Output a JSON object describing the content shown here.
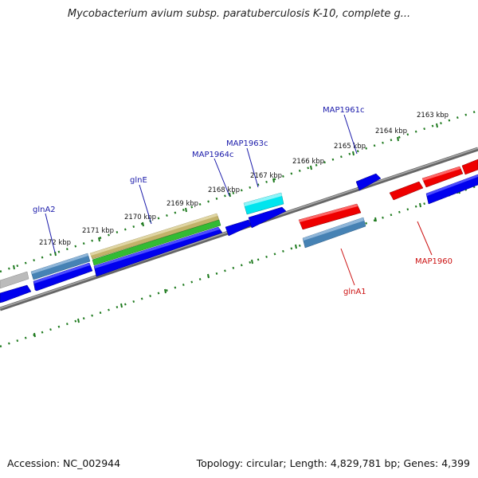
{
  "title": "Mycobacterium avium subsp. paratuberculosis K-10, complete g...",
  "footer": {
    "accession": "Accession: NC_002944",
    "summary": "Topology: circular; Length: 4,829,781 bp; Genes: 4,399"
  },
  "ticks": [
    {
      "id": "2172",
      "label": "2172 kbp"
    },
    {
      "id": "2171",
      "label": "2171 kbp"
    },
    {
      "id": "2170",
      "label": "2170 kbp"
    },
    {
      "id": "2169",
      "label": "2169 kbp"
    },
    {
      "id": "2168",
      "label": "2168 kbp"
    },
    {
      "id": "2167",
      "label": "2167 kbp"
    },
    {
      "id": "2166",
      "label": "2166 kbp"
    },
    {
      "id": "2165",
      "label": "2165 kbp"
    },
    {
      "id": "2164",
      "label": "2164 kbp"
    },
    {
      "id": "2163",
      "label": "2163 kbp"
    }
  ],
  "gene_labels": [
    {
      "id": "glnA2",
      "text": "glnA2",
      "strand": "forward"
    },
    {
      "id": "glnE",
      "text": "glnE",
      "strand": "forward"
    },
    {
      "id": "MAP1964c",
      "text": "MAP1964c",
      "strand": "forward"
    },
    {
      "id": "MAP1963c",
      "text": "MAP1963c",
      "strand": "forward"
    },
    {
      "id": "MAP1961c",
      "text": "MAP1961c",
      "strand": "forward"
    },
    {
      "id": "glnA1",
      "text": "glnA1",
      "strand": "reverse"
    },
    {
      "id": "MAP1960",
      "text": "MAP1960",
      "strand": "reverse"
    }
  ],
  "colors": {
    "forward_label": "#1a1aaa",
    "reverse_label": "#cc1111",
    "backbone": "#777777",
    "tick": "#1e7a1e",
    "cds_blue": "#0000ee",
    "gene_red": "#ee0000",
    "steel_blue": "#4682b4",
    "khaki": "#c2b26a",
    "green": "#33bb33",
    "cyan": "#00e5ee",
    "grey": "#bbbbbb"
  }
}
